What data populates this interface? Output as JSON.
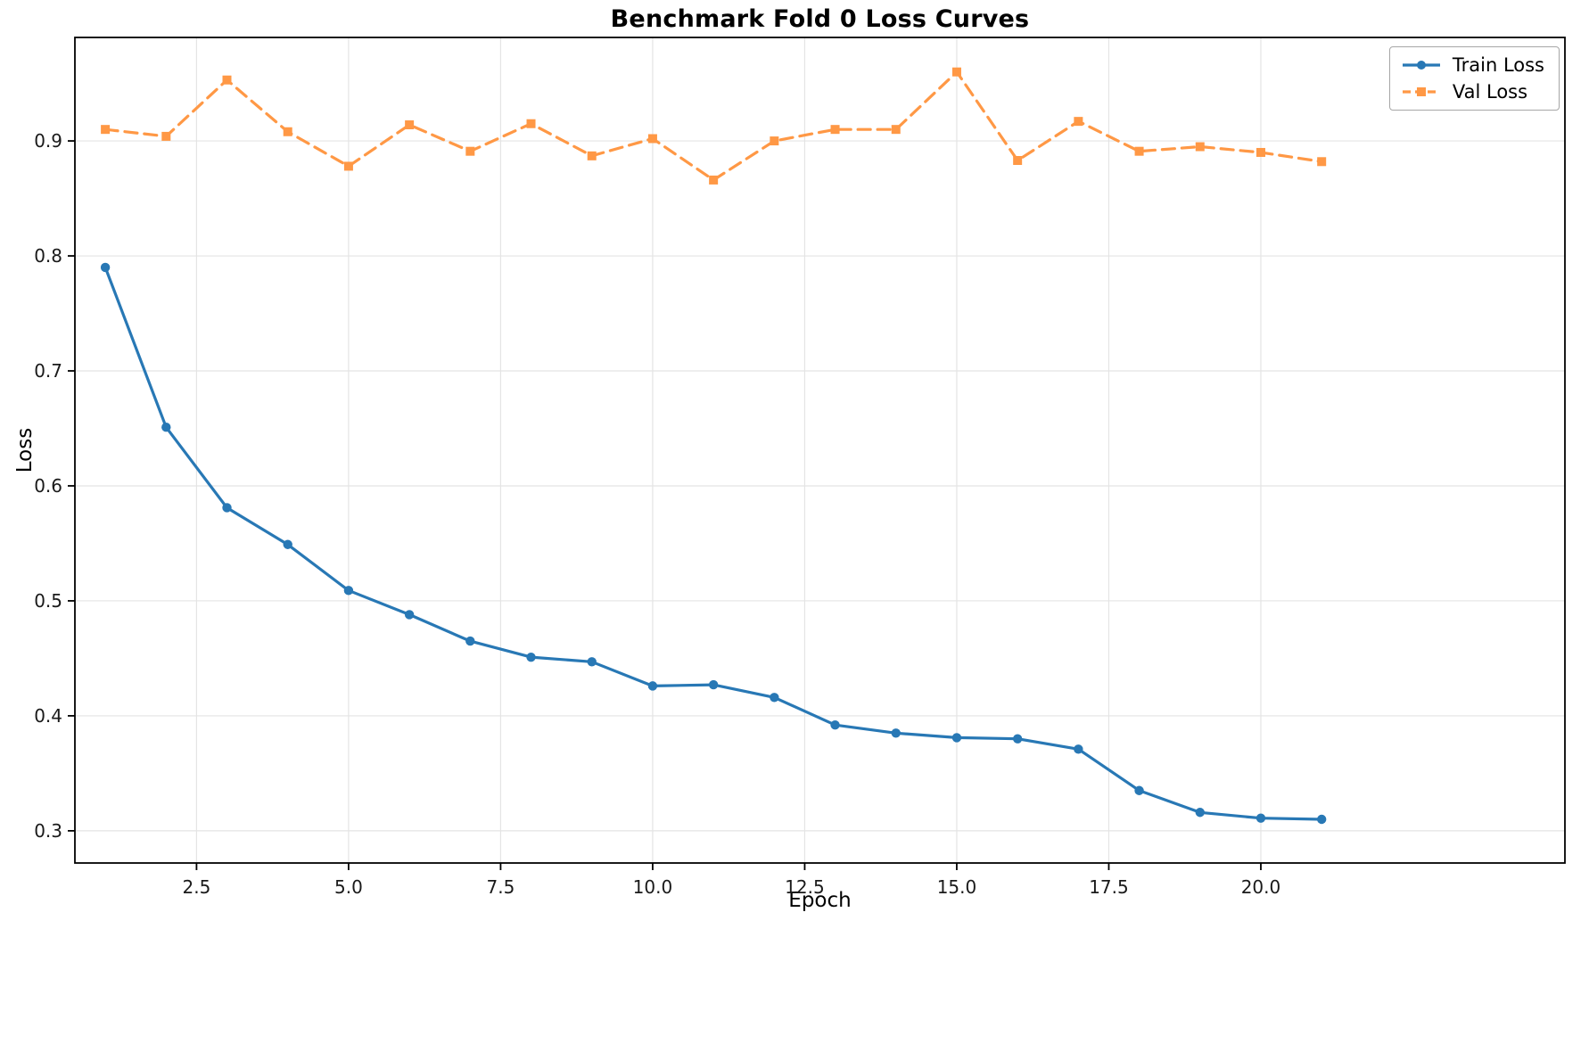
{
  "chart_data": {
    "type": "line",
    "title": "Benchmark Fold 0 Loss Curves",
    "xlabel": "Epoch",
    "ylabel": "Loss",
    "grid": true,
    "legend_position": "upper right",
    "xlim": [
      0.5,
      25.0
    ],
    "ylim": [
      0.272,
      0.99
    ],
    "xticks": [
      2.5,
      5.0,
      7.5,
      10.0,
      12.5,
      15.0,
      17.5,
      20.0
    ],
    "xtick_labels": [
      "2.5",
      "5.0",
      "7.5",
      "10.0",
      "12.5",
      "15.0",
      "17.5",
      "20.0"
    ],
    "yticks": [
      0.3,
      0.4,
      0.5,
      0.6,
      0.7,
      0.8,
      0.9
    ],
    "ytick_labels": [
      "0.3",
      "0.4",
      "0.5",
      "0.6",
      "0.7",
      "0.8",
      "0.9"
    ],
    "x": [
      1,
      2,
      3,
      4,
      5,
      6,
      7,
      8,
      9,
      10,
      11,
      12,
      13,
      14,
      15,
      16,
      17,
      18,
      19,
      20,
      21
    ],
    "series": [
      {
        "name": "Train Loss",
        "color": "#2878b5",
        "line_style": "solid",
        "marker": "circle",
        "values": [
          0.79,
          0.651,
          0.581,
          0.549,
          0.509,
          0.488,
          0.465,
          0.451,
          0.447,
          0.426,
          0.427,
          0.416,
          0.392,
          0.385,
          0.381,
          0.38,
          0.371,
          0.335,
          0.316,
          0.311,
          0.31
        ]
      },
      {
        "name": "Val Loss",
        "color": "#ff9845",
        "line_style": "dashed",
        "marker": "square",
        "values": [
          0.91,
          0.904,
          0.953,
          0.908,
          0.878,
          0.914,
          0.891,
          0.915,
          0.887,
          0.902,
          0.866,
          0.9,
          0.91,
          0.91,
          0.96,
          0.883,
          0.917,
          0.891,
          0.895,
          0.89,
          0.882
        ]
      }
    ]
  }
}
